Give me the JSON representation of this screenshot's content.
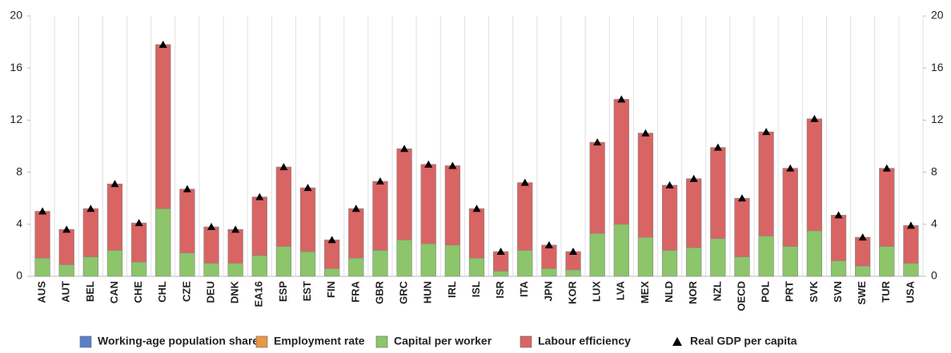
{
  "chart_data": {
    "type": "bar",
    "stacked": true,
    "categories": [
      "AUS",
      "AUT",
      "BEL",
      "CAN",
      "CHE",
      "CHL",
      "CZE",
      "DEU",
      "DNK",
      "EA16",
      "ESP",
      "EST",
      "FIN",
      "FRA",
      "GBR",
      "GRC",
      "HUN",
      "IRL",
      "ISL",
      "ISR",
      "ITA",
      "JPN",
      "KOR",
      "LUX",
      "LVA",
      "MEX",
      "NLD",
      "NOR",
      "NZL",
      "OECD",
      "POL",
      "PRT",
      "SVK",
      "SVN",
      "SWE",
      "TUR",
      "USA"
    ],
    "series": [
      {
        "name": "Working-age population share",
        "color": "#5b7fc6",
        "values": [
          0,
          0,
          0,
          0,
          0,
          0,
          0,
          0,
          0,
          0,
          0,
          0,
          0,
          0,
          0,
          0,
          0,
          0,
          0,
          0,
          0,
          0,
          0,
          0,
          0,
          0,
          0,
          0,
          0,
          0,
          0,
          0,
          0,
          0,
          0,
          0,
          0
        ]
      },
      {
        "name": "Employment rate",
        "color": "#e8964a",
        "values": [
          0,
          0,
          0,
          0,
          0,
          0,
          0,
          0,
          0,
          0,
          0,
          0,
          0,
          0,
          0,
          0,
          0,
          0,
          0,
          0,
          0,
          0,
          0,
          0,
          0,
          0,
          0,
          0,
          0,
          0,
          0,
          0,
          0,
          0,
          0,
          0,
          0
        ]
      },
      {
        "name": "Capital per worker",
        "color": "#8cc56a",
        "values": [
          1.4,
          0.9,
          1.5,
          2.0,
          1.1,
          5.2,
          1.8,
          1.0,
          1.0,
          1.6,
          2.3,
          1.9,
          0.6,
          1.4,
          2.0,
          2.8,
          2.5,
          2.4,
          1.4,
          0.4,
          2.0,
          0.6,
          0.5,
          3.3,
          4.0,
          3.0,
          2.0,
          2.2,
          2.9,
          1.5,
          3.1,
          2.3,
          3.5,
          1.2,
          0.8,
          2.3,
          1.0
        ]
      },
      {
        "name": "Labour efficiency",
        "color": "#d96464",
        "values": [
          3.6,
          2.7,
          3.7,
          5.1,
          3.0,
          12.6,
          4.9,
          2.8,
          2.6,
          4.5,
          6.1,
          4.9,
          2.2,
          3.8,
          5.3,
          7.0,
          6.1,
          6.1,
          3.8,
          1.5,
          5.2,
          1.8,
          1.4,
          7.0,
          9.6,
          8.0,
          5.0,
          5.3,
          7.0,
          4.5,
          8.0,
          6.0,
          8.6,
          3.5,
          2.2,
          6.0,
          2.9
        ]
      },
      {
        "name": "Real GDP per capita",
        "type": "scatter",
        "color": "#000000",
        "values": [
          5.0,
          3.6,
          5.2,
          7.1,
          4.1,
          17.8,
          6.7,
          3.8,
          3.6,
          6.1,
          8.4,
          6.8,
          2.8,
          5.2,
          7.3,
          9.8,
          8.6,
          8.5,
          5.2,
          1.9,
          7.2,
          2.4,
          1.9,
          10.3,
          13.6,
          11.0,
          7.0,
          7.5,
          9.9,
          6.0,
          11.1,
          8.3,
          12.1,
          4.7,
          3.0,
          8.3,
          3.9
        ]
      }
    ],
    "ylim": [
      0,
      20
    ],
    "yticks": [
      0,
      4,
      8,
      12,
      16,
      20
    ],
    "y2lim": [
      0,
      20
    ],
    "y2ticks": [
      0,
      4,
      8,
      12,
      16,
      20
    ]
  }
}
